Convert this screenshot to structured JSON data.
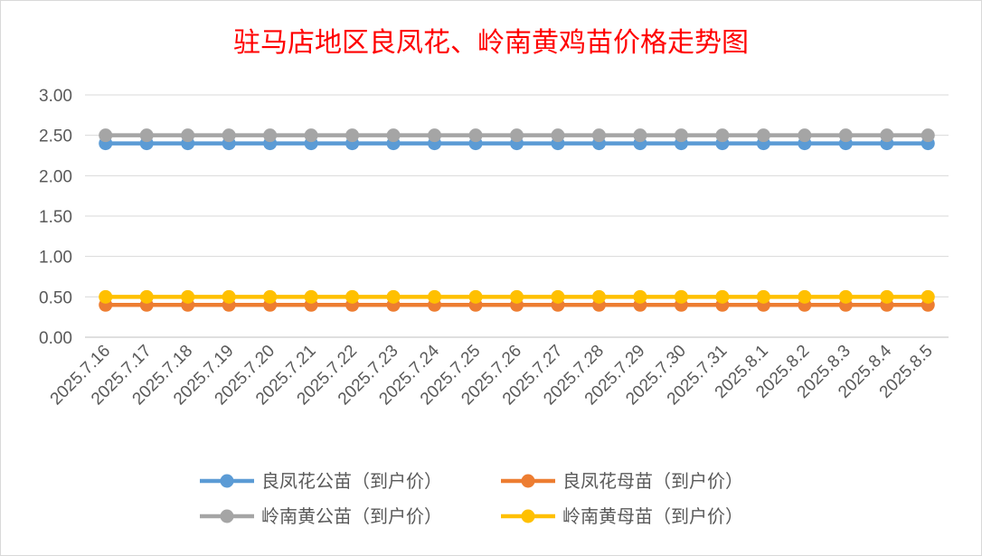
{
  "chart_data": {
    "type": "line",
    "title": "驻马店地区良凤花、岭南黄鸡苗价格走势图",
    "xlabel": "",
    "ylabel": "",
    "ylim": [
      0,
      3
    ],
    "yticks": [
      "0.00",
      "0.50",
      "1.00",
      "1.50",
      "2.00",
      "2.50",
      "3.00"
    ],
    "grid": true,
    "legend_position": "bottom",
    "categories": [
      "2025.7.16",
      "2025.7.17",
      "2025.7.18",
      "2025.7.19",
      "2025.7.20",
      "2025.7.21",
      "2025.7.22",
      "2025.7.23",
      "2025.7.24",
      "2025.7.25",
      "2025.7.26",
      "2025.7.27",
      "2025.7.28",
      "2025.7.29",
      "2025.7.30",
      "2025.7.31",
      "2025.8.1",
      "2025.8.2",
      "2025.8.3",
      "2025.8.4",
      "2025.8.5"
    ],
    "series": [
      {
        "name": "良凤花公苗（到户价）",
        "color": "#5b9bd5",
        "values": [
          2.4,
          2.4,
          2.4,
          2.4,
          2.4,
          2.4,
          2.4,
          2.4,
          2.4,
          2.4,
          2.4,
          2.4,
          2.4,
          2.4,
          2.4,
          2.4,
          2.4,
          2.4,
          2.4,
          2.4,
          2.4
        ]
      },
      {
        "name": "良凤花母苗（到户价）",
        "color": "#ed7d31",
        "values": [
          0.4,
          0.4,
          0.4,
          0.4,
          0.4,
          0.4,
          0.4,
          0.4,
          0.4,
          0.4,
          0.4,
          0.4,
          0.4,
          0.4,
          0.4,
          0.4,
          0.4,
          0.4,
          0.4,
          0.4,
          0.4
        ]
      },
      {
        "name": "岭南黄公苗（到户价）",
        "color": "#a5a5a5",
        "values": [
          2.5,
          2.5,
          2.5,
          2.5,
          2.5,
          2.5,
          2.5,
          2.5,
          2.5,
          2.5,
          2.5,
          2.5,
          2.5,
          2.5,
          2.5,
          2.5,
          2.5,
          2.5,
          2.5,
          2.5,
          2.5
        ]
      },
      {
        "name": "岭南黄母苗（到户价）",
        "color": "#ffc000",
        "values": [
          0.5,
          0.5,
          0.5,
          0.5,
          0.5,
          0.5,
          0.5,
          0.5,
          0.5,
          0.5,
          0.5,
          0.5,
          0.5,
          0.5,
          0.5,
          0.5,
          0.5,
          0.5,
          0.5,
          0.5,
          0.5
        ]
      }
    ]
  }
}
